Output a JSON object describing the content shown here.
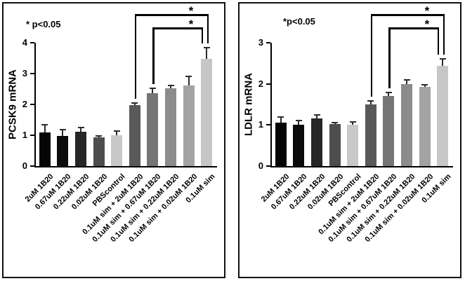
{
  "style": {
    "bar_colors": [
      "#050505",
      "#0b0b0b",
      "#262626",
      "#4d4d4d",
      "#c8c8c8",
      "#595959",
      "#757575",
      "#8c8c8c",
      "#a3a3a3",
      "#c6c6c6"
    ],
    "error_color": "#2b2b2b",
    "axis_color": "#000000",
    "bracket_color": "#000000"
  },
  "chart_data": [
    {
      "type": "bar",
      "title": "",
      "ylabel": "PCSK9 mRNA",
      "xlabel": "",
      "annotation": "* p<0.05",
      "ylim": [
        0,
        4
      ],
      "yticks": [
        0,
        1,
        2,
        3,
        4
      ],
      "grid": false,
      "legend": "none",
      "categories": [
        "2uM 1B20",
        "0.67uM 1B20",
        "0.22uM 1B20",
        "0.02uM 1B20",
        "PBScontrol",
        "0.1uM sim + 2uM 1B20",
        "0.1uM sim + 0.67uM 1B20",
        "0.1uM sim + 0.22uM 1B20",
        "0.1uM sim + 0.02uM 1B20",
        "0.1uM sim"
      ],
      "values": [
        1.08,
        0.97,
        1.12,
        0.93,
        1.01,
        1.97,
        2.37,
        2.52,
        2.62,
        3.47
      ],
      "errors": [
        0.27,
        0.22,
        0.13,
        0.04,
        0.12,
        0.08,
        0.15,
        0.1,
        0.3,
        0.38
      ],
      "significance": [
        {
          "from": 5,
          "to": 9,
          "label": "*"
        },
        {
          "from": 6,
          "to": 9,
          "label": "*"
        }
      ]
    },
    {
      "type": "bar",
      "title": "",
      "ylabel": "LDLR mRNA",
      "xlabel": "",
      "annotation": "*p<0.05",
      "ylim": [
        0,
        3
      ],
      "yticks": [
        0,
        1,
        2,
        3
      ],
      "grid": false,
      "legend": "none",
      "categories": [
        "2uM 1B20",
        "0.67uM 1B20",
        "0.22uM 1B20",
        "0.02uM 1B20",
        "PBScontrol",
        "0.1uM sim + 2uM 1B20",
        "0.1uM sim + 0.67uM 1B20",
        "0.1uM sim + 0.22uM 1B20",
        "0.1uM sim + 0.02uM 1B20",
        "0.1uM sim"
      ],
      "values": [
        1.06,
        1.01,
        1.16,
        1.02,
        1.0,
        1.5,
        1.71,
        2.0,
        1.92,
        2.44
      ],
      "errors": [
        0.13,
        0.1,
        0.08,
        0.03,
        0.08,
        0.08,
        0.08,
        0.1,
        0.06,
        0.16
      ],
      "significance": [
        {
          "from": 5,
          "to": 9,
          "label": "*"
        },
        {
          "from": 6,
          "to": 9,
          "label": "*"
        }
      ]
    }
  ]
}
